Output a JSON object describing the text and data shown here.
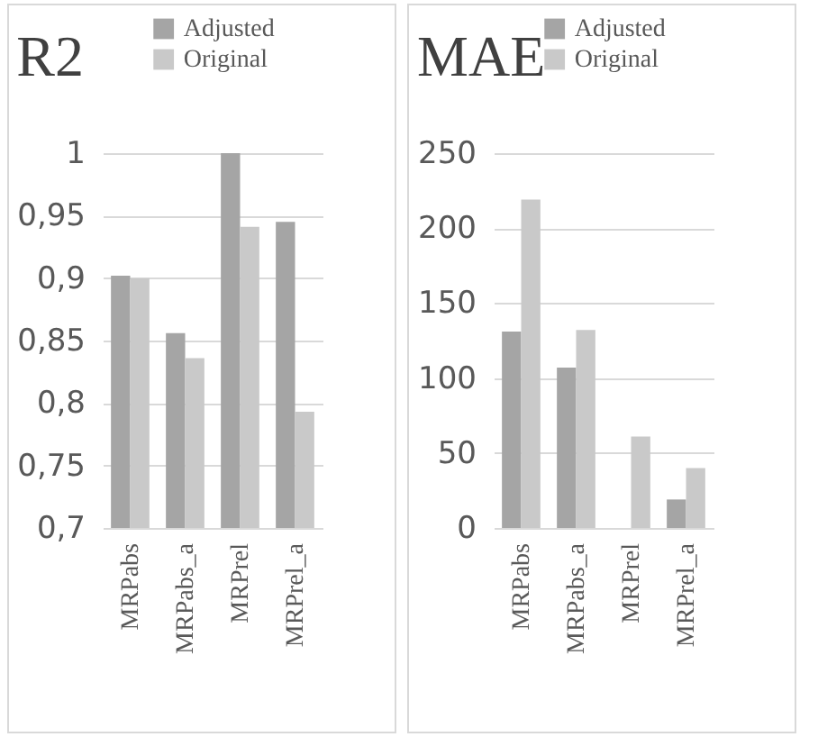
{
  "chart_data": [
    {
      "type": "bar",
      "title": "R2",
      "categories": [
        "MRPabs",
        "MRPabs_a",
        "MRPrel",
        "MRPrel_a"
      ],
      "series": [
        {
          "name": "Adjusted",
          "color": "#a5a5a5",
          "values": [
            0.902,
            0.856,
            1.0,
            0.945
          ]
        },
        {
          "name": "Original",
          "color": "#c9c9c9",
          "values": [
            0.9,
            0.836,
            0.941,
            0.793
          ]
        }
      ],
      "ylim": [
        0.7,
        1
      ],
      "yticks": [
        {
          "value": 0.7,
          "label": "0,7"
        },
        {
          "value": 0.75,
          "label": "0,75"
        },
        {
          "value": 0.8,
          "label": "0,8"
        },
        {
          "value": 0.85,
          "label": "0,85"
        },
        {
          "value": 0.9,
          "label": "0,9"
        },
        {
          "value": 0.95,
          "label": "0,95"
        },
        {
          "value": 1,
          "label": "1"
        }
      ],
      "grid": "y",
      "legend": "top right"
    },
    {
      "type": "bar",
      "title": "MAE",
      "categories": [
        "MRPabs",
        "MRPabs_a",
        "MRPrel",
        "MRPrel_a"
      ],
      "series": [
        {
          "name": "Adjusted",
          "color": "#a5a5a5",
          "values": [
            131,
            107,
            0,
            19
          ]
        },
        {
          "name": "Original",
          "color": "#c9c9c9",
          "values": [
            219,
            132,
            61,
            40
          ]
        }
      ],
      "ylim": [
        0,
        250
      ],
      "yticks": [
        0,
        50,
        100,
        150,
        200,
        250
      ],
      "grid": "y",
      "legend": "top right"
    }
  ]
}
